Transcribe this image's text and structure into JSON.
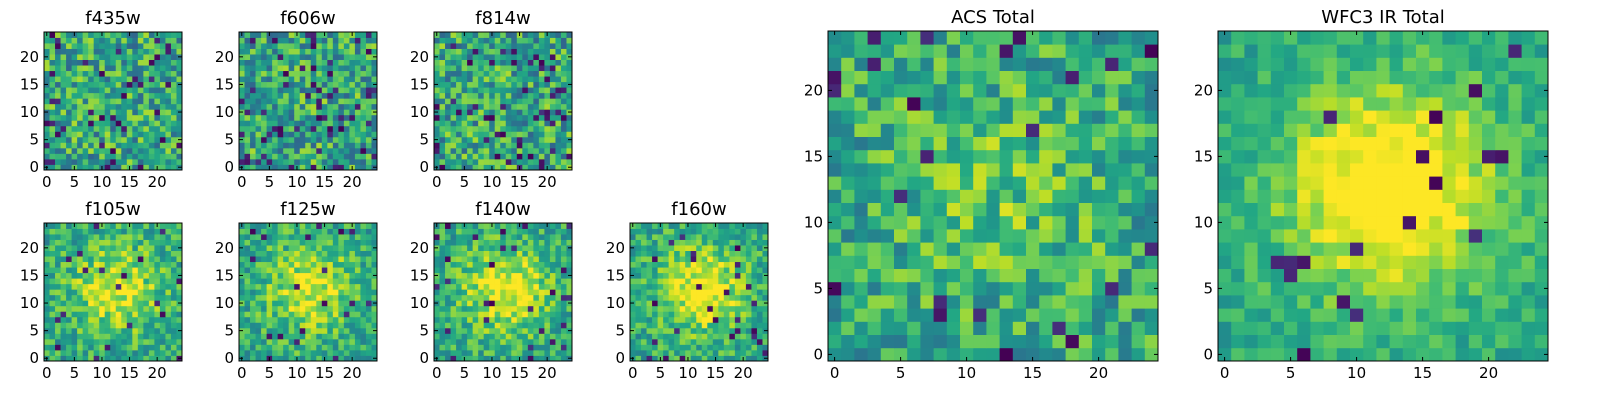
{
  "figure": {
    "colormap": "viridis",
    "colors": {
      "low": "#440154",
      "mid": "#21918c",
      "high": "#fde725"
    }
  },
  "chart_data": [
    {
      "id": "f435w",
      "type": "heatmap",
      "title": "f435w",
      "size": 25,
      "xticks": [
        0,
        5,
        10,
        15,
        20
      ],
      "yticks": [
        0,
        5,
        10,
        15,
        20
      ],
      "xlim": [
        -0.5,
        24.5
      ],
      "ylim": [
        -0.5,
        24.5
      ],
      "seed": 11,
      "central_peak": 0.0,
      "noise": 0.55,
      "dark_frac": 0.06
    },
    {
      "id": "f606w",
      "type": "heatmap",
      "title": "f606w",
      "size": 25,
      "xticks": [
        0,
        5,
        10,
        15,
        20
      ],
      "yticks": [
        0,
        5,
        10,
        15,
        20
      ],
      "xlim": [
        -0.5,
        24.5
      ],
      "ylim": [
        -0.5,
        24.5
      ],
      "seed": 23,
      "central_peak": 0.0,
      "noise": 0.55,
      "dark_frac": 0.08
    },
    {
      "id": "f814w",
      "type": "heatmap",
      "title": "f814w",
      "size": 25,
      "xticks": [
        0,
        5,
        10,
        15,
        20
      ],
      "yticks": [
        0,
        5,
        10,
        15,
        20
      ],
      "xlim": [
        -0.5,
        24.5
      ],
      "ylim": [
        -0.5,
        24.5
      ],
      "seed": 37,
      "central_peak": 0.0,
      "noise": 0.55,
      "dark_frac": 0.08
    },
    {
      "id": "f105w",
      "type": "heatmap",
      "title": "f105w",
      "size": 25,
      "xticks": [
        0,
        5,
        10,
        15,
        20
      ],
      "yticks": [
        0,
        5,
        10,
        15,
        20
      ],
      "xlim": [
        -0.5,
        24.5
      ],
      "ylim": [
        -0.5,
        24.5
      ],
      "seed": 41,
      "central_peak": 0.35,
      "noise": 0.4,
      "dark_frac": 0.04
    },
    {
      "id": "f125w",
      "type": "heatmap",
      "title": "f125w",
      "size": 25,
      "xticks": [
        0,
        5,
        10,
        15,
        20
      ],
      "yticks": [
        0,
        5,
        10,
        15,
        20
      ],
      "xlim": [
        -0.5,
        24.5
      ],
      "ylim": [
        -0.5,
        24.5
      ],
      "seed": 53,
      "central_peak": 0.35,
      "noise": 0.4,
      "dark_frac": 0.04
    },
    {
      "id": "f140w",
      "type": "heatmap",
      "title": "f140w",
      "size": 25,
      "xticks": [
        0,
        5,
        10,
        15,
        20
      ],
      "yticks": [
        0,
        5,
        10,
        15,
        20
      ],
      "xlim": [
        -0.5,
        24.5
      ],
      "ylim": [
        -0.5,
        24.5
      ],
      "seed": 67,
      "central_peak": 0.4,
      "noise": 0.38,
      "dark_frac": 0.04
    },
    {
      "id": "f160w",
      "type": "heatmap",
      "title": "f160w",
      "size": 25,
      "xticks": [
        0,
        5,
        10,
        15,
        20
      ],
      "yticks": [
        0,
        5,
        10,
        15,
        20
      ],
      "xlim": [
        -0.5,
        24.5
      ],
      "ylim": [
        -0.5,
        24.5
      ],
      "seed": 79,
      "central_peak": 0.4,
      "noise": 0.38,
      "dark_frac": 0.05
    },
    {
      "id": "acs_total",
      "type": "heatmap",
      "title": "ACS Total",
      "size": 25,
      "xticks": [
        0,
        5,
        10,
        15,
        20
      ],
      "yticks": [
        0,
        5,
        10,
        15,
        20
      ],
      "xlim": [
        -0.5,
        24.5
      ],
      "ylim": [
        -0.5,
        24.5
      ],
      "seed": 97,
      "central_peak": 0.15,
      "noise": 0.45,
      "dark_frac": 0.04
    },
    {
      "id": "wfc3_ir_total",
      "type": "heatmap",
      "title": "WFC3 IR Total",
      "size": 25,
      "xticks": [
        0,
        5,
        10,
        15,
        20
      ],
      "yticks": [
        0,
        5,
        10,
        15,
        20
      ],
      "xlim": [
        -0.5,
        24.5
      ],
      "ylim": [
        -0.5,
        24.5
      ],
      "seed": 101,
      "central_peak": 0.55,
      "noise": 0.25,
      "dark_frac": 0.03
    }
  ]
}
